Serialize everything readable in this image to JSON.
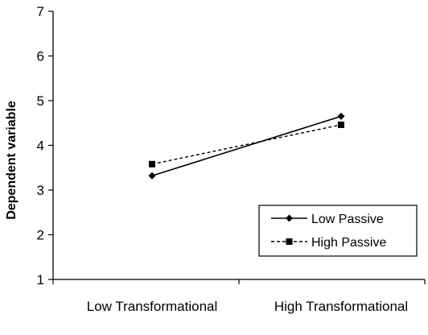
{
  "chart_data": {
    "type": "line",
    "title": "",
    "xlabel": "",
    "ylabel": "Dependent variable",
    "categories": [
      "Low Transformational",
      "High Transformational"
    ],
    "ylim": [
      1,
      7
    ],
    "yticks": [
      "1",
      "2",
      "3",
      "4",
      "5",
      "6",
      "7"
    ],
    "grid": false,
    "legend_position": "bottom-right",
    "series": [
      {
        "name": "Low Passive",
        "values": [
          3.32,
          4.65
        ],
        "marker": "diamond",
        "line_style": "solid",
        "color": "#000000"
      },
      {
        "name": "High Passive",
        "values": [
          3.58,
          4.46
        ],
        "marker": "square",
        "line_style": "dashed",
        "color": "#000000"
      }
    ]
  }
}
